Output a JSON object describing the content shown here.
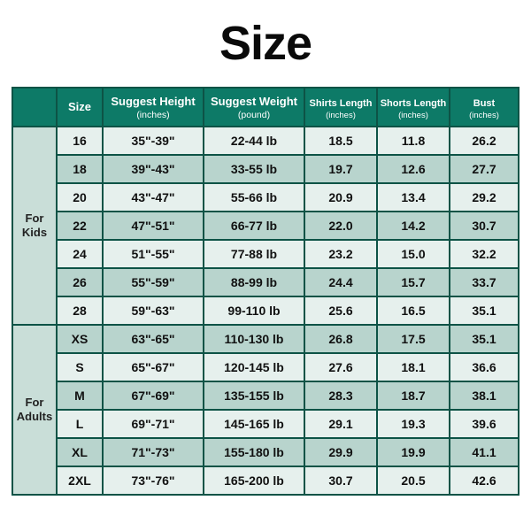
{
  "title": "Size",
  "title_fontsize": 54,
  "title_color": "#0a0a0a",
  "border_color": "#0d5346",
  "header_bg": "#0d7a67",
  "header_fg": "#ffffff",
  "group_bg": "#c9ded8",
  "group_fg": "#222222",
  "stripe_a_bg": "#e6f0ed",
  "stripe_b_bg": "#b8d4cd",
  "cell_fg": "#111111",
  "header_row_height": 44,
  "body_row_height": 32,
  "columns": [
    {
      "key": "group",
      "label": "",
      "sub": ""
    },
    {
      "key": "size",
      "label": "Size",
      "sub": ""
    },
    {
      "key": "height",
      "label": "Suggest Height",
      "sub": "(inches)"
    },
    {
      "key": "weight",
      "label": "Suggest Weight",
      "sub": "(pound)"
    },
    {
      "key": "shirts",
      "label": "Shirts Length",
      "sub": "(inches)",
      "small": true
    },
    {
      "key": "shorts",
      "label": "Shorts Length",
      "sub": "(inches)",
      "small": true
    },
    {
      "key": "bust",
      "label": "Bust",
      "sub": "(inches)",
      "small": true
    }
  ],
  "groups": [
    {
      "label": "For\nKids",
      "rows": [
        {
          "size": "16",
          "height": "35\"-39\"",
          "weight": "22-44 lb",
          "shirts": "18.5",
          "shorts": "11.8",
          "bust": "26.2"
        },
        {
          "size": "18",
          "height": "39\"-43\"",
          "weight": "33-55 lb",
          "shirts": "19.7",
          "shorts": "12.6",
          "bust": "27.7"
        },
        {
          "size": "20",
          "height": "43\"-47\"",
          "weight": "55-66 lb",
          "shirts": "20.9",
          "shorts": "13.4",
          "bust": "29.2"
        },
        {
          "size": "22",
          "height": "47\"-51\"",
          "weight": "66-77 lb",
          "shirts": "22.0",
          "shorts": "14.2",
          "bust": "30.7"
        },
        {
          "size": "24",
          "height": "51\"-55\"",
          "weight": "77-88 lb",
          "shirts": "23.2",
          "shorts": "15.0",
          "bust": "32.2"
        },
        {
          "size": "26",
          "height": "55\"-59\"",
          "weight": "88-99 lb",
          "shirts": "24.4",
          "shorts": "15.7",
          "bust": "33.7"
        },
        {
          "size": "28",
          "height": "59\"-63\"",
          "weight": "99-110 lb",
          "shirts": "25.6",
          "shorts": "16.5",
          "bust": "35.1"
        }
      ]
    },
    {
      "label": "For\nAdults",
      "rows": [
        {
          "size": "XS",
          "height": "63\"-65\"",
          "weight": "110-130 lb",
          "shirts": "26.8",
          "shorts": "17.5",
          "bust": "35.1"
        },
        {
          "size": "S",
          "height": "65\"-67\"",
          "weight": "120-145 lb",
          "shirts": "27.6",
          "shorts": "18.1",
          "bust": "36.6"
        },
        {
          "size": "M",
          "height": "67\"-69\"",
          "weight": "135-155 lb",
          "shirts": "28.3",
          "shorts": "18.7",
          "bust": "38.1"
        },
        {
          "size": "L",
          "height": "69\"-71\"",
          "weight": "145-165 lb",
          "shirts": "29.1",
          "shorts": "19.3",
          "bust": "39.6"
        },
        {
          "size": "XL",
          "height": "71\"-73\"",
          "weight": "155-180 lb",
          "shirts": "29.9",
          "shorts": "19.9",
          "bust": "41.1"
        },
        {
          "size": "2XL",
          "height": "73\"-76\"",
          "weight": "165-200 lb",
          "shirts": "30.7",
          "shorts": "20.5",
          "bust": "42.6"
        }
      ]
    }
  ],
  "cell_fontsize": 14,
  "group_fontsize": 13
}
